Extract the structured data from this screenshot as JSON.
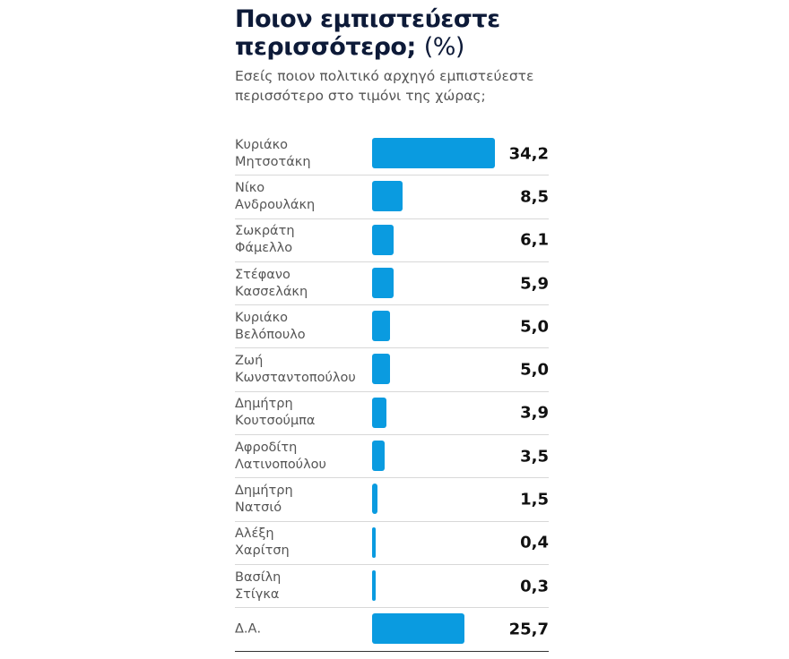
{
  "chart_data": {
    "type": "bar",
    "orientation": "horizontal",
    "title": "Ποιον εμπιστεύεστε περισσότερο;",
    "title_unit": "(%)",
    "subtitle": "Εσείς ποιον πολιτικό αρχηγό εμπιστεύεστε περισσότερο στο τιμόνι της χώρας;",
    "categories": [
      [
        "Κυριάκο",
        "Μητσοτάκη"
      ],
      [
        "Νίκο",
        "Ανδρουλάκη"
      ],
      [
        "Σωκράτη",
        "Φάμελλο"
      ],
      [
        "Στέφανο",
        "Κασσελάκη"
      ],
      [
        "Κυριάκο",
        "Βελόπουλο"
      ],
      [
        "Ζωή",
        "Κωνσταντοπούλου"
      ],
      [
        "Δημήτρη",
        "Κουτσούμπα"
      ],
      [
        "Αφροδίτη",
        "Λατινοπούλου"
      ],
      [
        "Δημήτρη",
        "Νατσιό"
      ],
      [
        "Αλέξη",
        "Χαρίτση"
      ],
      [
        "Βασίλη",
        "Στίγκα"
      ],
      [
        "Δ.Α."
      ]
    ],
    "values": [
      34.2,
      8.5,
      6.1,
      5.9,
      5.0,
      5.0,
      3.9,
      3.5,
      1.5,
      0.4,
      0.3,
      25.7
    ],
    "value_labels": [
      "34,2",
      "8,5",
      "6,1",
      "5,9",
      "5,0",
      "5,0",
      "3,9",
      "3,5",
      "1,5",
      "0,4",
      "0,3",
      "25,7"
    ],
    "bar_color": "#0a9be0",
    "xlim": [
      0,
      34.2
    ],
    "grid": false
  }
}
